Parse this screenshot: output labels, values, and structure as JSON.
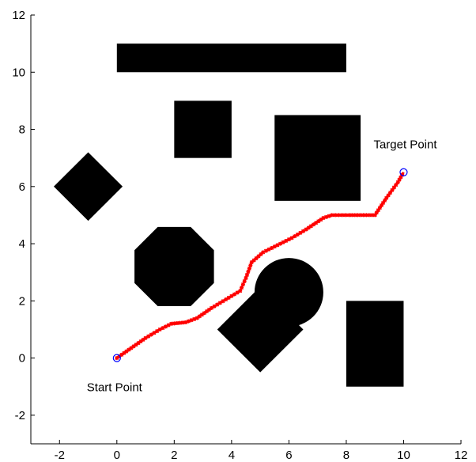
{
  "chart_data": {
    "type": "scatter",
    "title": "",
    "xlabel": "",
    "ylabel": "",
    "xlim": [
      -3,
      12
    ],
    "ylim": [
      -3,
      12
    ],
    "grid": false,
    "x_ticks": [
      -2,
      0,
      2,
      4,
      6,
      8,
      10,
      12
    ],
    "y_ticks": [
      -2,
      0,
      2,
      4,
      6,
      8,
      10,
      12
    ],
    "obstacles": [
      {
        "shape": "rect",
        "x": [
          0,
          8
        ],
        "y": [
          10,
          11
        ]
      },
      {
        "shape": "rect",
        "x": [
          2,
          4
        ],
        "y": [
          7,
          9
        ]
      },
      {
        "shape": "rect",
        "x": [
          5.5,
          8.5
        ],
        "y": [
          5.5,
          8.5
        ]
      },
      {
        "shape": "rect",
        "x": [
          8,
          10
        ],
        "y": [
          -1,
          2
        ]
      },
      {
        "shape": "diamond",
        "center": [
          -1,
          6
        ],
        "radius": 1.2
      },
      {
        "shape": "diamond",
        "center": [
          5,
          1
        ],
        "radius": 1.5
      },
      {
        "shape": "circle",
        "center": [
          6,
          2.3
        ],
        "radius": 1.2
      },
      {
        "shape": "octagon",
        "center": [
          2,
          3.2
        ],
        "radius": 1.5
      }
    ],
    "path": {
      "color": "#ff0000",
      "marker": "*",
      "x": [
        0,
        0.5,
        1,
        1.5,
        1.9,
        2.4,
        2.8,
        3.3,
        3.8,
        4.3,
        4.5,
        4.7,
        5.1,
        5.6,
        6.1,
        6.6,
        7.2,
        7.5,
        8.1,
        8.6,
        9.0,
        9.4,
        9.8,
        10
      ],
      "y": [
        0,
        0.35,
        0.7,
        1.0,
        1.2,
        1.25,
        1.4,
        1.75,
        2.05,
        2.35,
        2.8,
        3.35,
        3.7,
        3.95,
        4.2,
        4.5,
        4.9,
        5.0,
        5.0,
        5.0,
        5.0,
        5.6,
        6.15,
        6.5
      ]
    },
    "start": {
      "x": 0,
      "y": 0,
      "label": "Start Point"
    },
    "target": {
      "x": 10,
      "y": 6.5,
      "label": "Target Point"
    }
  }
}
